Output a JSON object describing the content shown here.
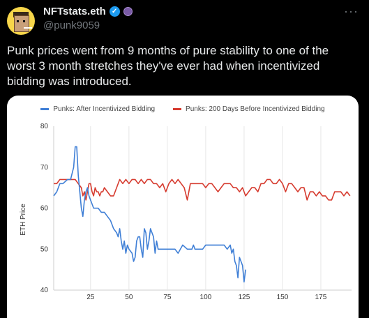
{
  "author": {
    "display_name": "NFTstats.eth",
    "handle": "@punk9059",
    "verified_icon": "verified-check-icon",
    "extra_badge_icon": "purple-badge-icon"
  },
  "menu": {
    "label": "···"
  },
  "tweet": {
    "text": "Punk prices went from 9 months of pure stability to one of the worst 3 month stretches they've ever had when incentivized bidding was introduced."
  },
  "colors": {
    "series_blue": "#3f7fd6",
    "series_red": "#d63b2f",
    "background": "#000000",
    "card": "#ffffff"
  },
  "chart_data": {
    "type": "line",
    "ylabel": "ETH Price",
    "xlabel": "",
    "ylim": [
      40,
      80
    ],
    "xlim": [
      1,
      195
    ],
    "yticks": [
      40,
      50,
      60,
      70,
      80
    ],
    "xticks": [
      25,
      50,
      75,
      100,
      125,
      150,
      175
    ],
    "grid": "vertical",
    "legend_position": "top",
    "series": [
      {
        "name": "Punks: After Incentivized Bidding",
        "color": "#3f7fd6",
        "x": [
          1,
          3,
          5,
          7,
          10,
          12,
          14,
          15,
          16,
          17,
          18,
          19,
          20,
          21,
          22,
          23,
          24,
          25,
          26,
          27,
          28,
          29,
          30,
          32,
          34,
          36,
          38,
          40,
          42,
          43,
          44,
          45,
          46,
          47,
          48,
          49,
          50,
          52,
          53,
          54,
          55,
          56,
          57,
          58,
          59,
          60,
          61,
          62,
          63,
          64,
          65,
          66,
          67,
          68,
          69,
          70,
          72,
          75,
          77,
          80,
          82,
          85,
          88,
          90,
          91,
          92,
          93,
          94,
          95,
          96,
          98,
          100,
          102,
          104,
          106,
          108,
          110,
          112,
          114,
          116,
          117,
          118,
          119,
          120,
          121,
          122,
          123,
          124,
          125,
          126
        ],
        "y": [
          63,
          64,
          66,
          66,
          67,
          67,
          70,
          75,
          75,
          68,
          64,
          60,
          58,
          62,
          64,
          65,
          63,
          62,
          61,
          60,
          60,
          60,
          60,
          59,
          59,
          58,
          57,
          55,
          54,
          53,
          55,
          52,
          50,
          52,
          49,
          51,
          50,
          49,
          47,
          48,
          52,
          53,
          53,
          50,
          48,
          55,
          54,
          50,
          52,
          55,
          54,
          53,
          49,
          52,
          50,
          50,
          50,
          50,
          50,
          50,
          49,
          51,
          50,
          50,
          50,
          51,
          50,
          50,
          50,
          50,
          50,
          51,
          51,
          51,
          51,
          51,
          51,
          51,
          50,
          51,
          49,
          50,
          47,
          46,
          43,
          48,
          47,
          46,
          42,
          45
        ]
      },
      {
        "name": "Punks: 200 Days Before Incentivized Bidding",
        "color": "#d63b2f",
        "x": [
          1,
          3,
          5,
          8,
          10,
          12,
          15,
          17,
          19,
          20,
          21,
          22,
          23,
          24,
          25,
          26,
          27,
          28,
          29,
          30,
          31,
          32,
          33,
          34,
          36,
          38,
          40,
          42,
          44,
          46,
          48,
          50,
          52,
          54,
          56,
          58,
          60,
          62,
          64,
          66,
          68,
          70,
          72,
          74,
          76,
          78,
          80,
          82,
          84,
          86,
          88,
          90,
          92,
          94,
          96,
          98,
          100,
          102,
          104,
          106,
          108,
          110,
          112,
          114,
          116,
          118,
          120,
          122,
          124,
          126,
          128,
          130,
          132,
          134,
          136,
          138,
          140,
          142,
          144,
          146,
          148,
          150,
          152,
          154,
          156,
          158,
          160,
          162,
          164,
          166,
          168,
          170,
          172,
          174,
          176,
          178,
          180,
          182,
          184,
          186,
          188,
          190,
          192,
          194
        ],
        "y": [
          66,
          66,
          67,
          67,
          67,
          67,
          67,
          66,
          65,
          63,
          64,
          62,
          64,
          66,
          66,
          64,
          63,
          65,
          64,
          64,
          63,
          64,
          64,
          65,
          64,
          63,
          63,
          65,
          67,
          66,
          67,
          66,
          67,
          67,
          66,
          67,
          66,
          67,
          67,
          66,
          66,
          65,
          66,
          64,
          66,
          67,
          66,
          67,
          66,
          65,
          62,
          66,
          66,
          66,
          66,
          66,
          65,
          66,
          66,
          65,
          64,
          65,
          66,
          66,
          66,
          65,
          65,
          64,
          65,
          63,
          64,
          65,
          65,
          64,
          66,
          66,
          67,
          67,
          66,
          66,
          67,
          66,
          64,
          66,
          66,
          65,
          64,
          65,
          65,
          62,
          64,
          64,
          63,
          64,
          63,
          63,
          62,
          62,
          64,
          64,
          64,
          63,
          64,
          63
        ]
      }
    ]
  }
}
